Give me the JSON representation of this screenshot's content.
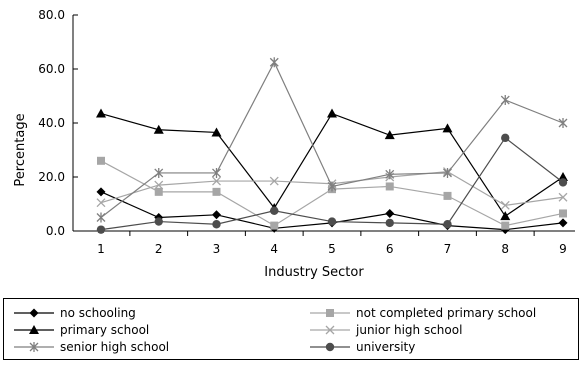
{
  "chart_data": {
    "type": "line",
    "title": "",
    "xlabel": "Industry Sector",
    "ylabel": "Percentage",
    "x": [
      1,
      2,
      3,
      4,
      5,
      6,
      7,
      8,
      9
    ],
    "x_tick_labels": [
      "1",
      "2",
      "3",
      "4",
      "5",
      "6",
      "7",
      "8",
      "9"
    ],
    "y_tick_labels": [
      "0.0",
      "20.0",
      "40.0",
      "60.0",
      "80.0"
    ],
    "y_ticks": [
      0,
      20,
      40,
      60,
      80
    ],
    "ylim": [
      0,
      80
    ],
    "grid": false,
    "legend_placement": "bottom",
    "series": [
      {
        "name": "no schooling",
        "marker": "diamond",
        "color": "#000000",
        "values": [
          14.5,
          5.0,
          6.0,
          1.0,
          3.0,
          6.5,
          2.0,
          0.5,
          3.0
        ]
      },
      {
        "name": "not completed primary school",
        "marker": "square",
        "color": "#a6a6a6",
        "values": [
          26.0,
          14.5,
          14.5,
          2.0,
          15.5,
          16.5,
          13.0,
          2.0,
          6.5
        ]
      },
      {
        "name": "primary school",
        "marker": "triangle",
        "color": "#000000",
        "values": [
          43.5,
          37.5,
          36.5,
          8.5,
          43.5,
          35.5,
          38.0,
          5.5,
          20.0
        ]
      },
      {
        "name": "junior high school",
        "marker": "x",
        "color": "#a6a6a6",
        "values": [
          10.5,
          17.0,
          18.5,
          18.5,
          17.5,
          20.0,
          22.0,
          9.5,
          12.5
        ]
      },
      {
        "name": "senior high school",
        "marker": "star",
        "color": "#7f7f7f",
        "values": [
          5.0,
          21.5,
          21.5,
          62.5,
          16.5,
          21.0,
          21.5,
          48.5,
          40.0
        ]
      },
      {
        "name": "university",
        "marker": "circle",
        "color": "#4d4d4d",
        "values": [
          0.5,
          3.5,
          2.5,
          7.5,
          3.5,
          3.0,
          2.5,
          34.5,
          18.0
        ]
      }
    ]
  }
}
